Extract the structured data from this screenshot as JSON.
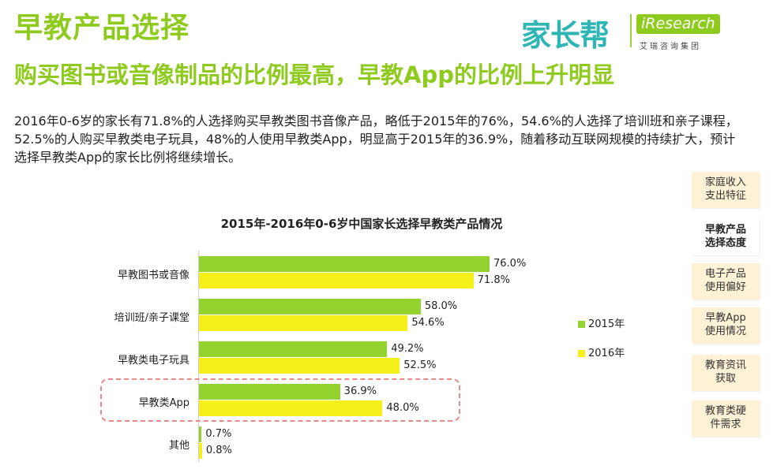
{
  "header": {
    "title": "早教产品选择",
    "subtitle": "购买图书或音像制品的比例最高，早教App的比例上升明显",
    "description": "2016年0-6岁的家长有71.8%的人选择购买早教类图书音像产品，略低于2015年的76%，54.6%的人选择了培训班和亲子课程，52.5%的人购买早教类电子玩具，48%的人使用早教类App，明显高于2015年的36.9%，随着移动互联网规模的持续扩大，预计选择早教类App的家长比例将继续增长。"
  },
  "logo": {
    "cn": "家长帮",
    "en": "iResearch",
    "sub": "艾瑞咨询集团"
  },
  "nav": {
    "items": [
      {
        "line1": "家庭收入",
        "line2": "支出特征",
        "active": false
      },
      {
        "line1": "早教产品",
        "line2": "选择态度",
        "active": true
      },
      {
        "line1": "电子产品",
        "line2": "使用偏好",
        "active": false
      },
      {
        "line1": "早教App",
        "line2": "使用情况",
        "active": false
      },
      {
        "line1": "教育资讯",
        "line2": "获取",
        "active": false
      },
      {
        "line1": "教育类硬",
        "line2": "件需求",
        "active": false
      }
    ]
  },
  "chart_data": {
    "type": "bar",
    "orientation": "horizontal",
    "title": "2015年-2016年0-6岁中国家长选择早教类产品情况",
    "categories": [
      "早教图书或音像",
      "培训班/亲子课堂",
      "早教类电子玩具",
      "早教类App",
      "其他"
    ],
    "series": [
      {
        "name": "2015年",
        "color": "#93d22f",
        "values": [
          76.0,
          58.0,
          49.2,
          36.9,
          0.7
        ],
        "labels": [
          "76.0%",
          "58.0%",
          "49.2%",
          "36.9%",
          "0.7%"
        ]
      },
      {
        "name": "2016年",
        "color": "#f5ef1a",
        "values": [
          71.8,
          54.6,
          52.5,
          48.0,
          0.8
        ],
        "labels": [
          "71.8%",
          "54.6%",
          "52.5%",
          "48.0%",
          "0.8%"
        ]
      }
    ],
    "xlim": [
      0,
      100
    ],
    "legend_position": "right",
    "highlighted_category": "早教类App"
  },
  "colors": {
    "accent": "#8fcb1f",
    "series_2015": "#93d22f",
    "series_2016": "#f5ef1a",
    "highlight_border": "#e58b8b"
  }
}
